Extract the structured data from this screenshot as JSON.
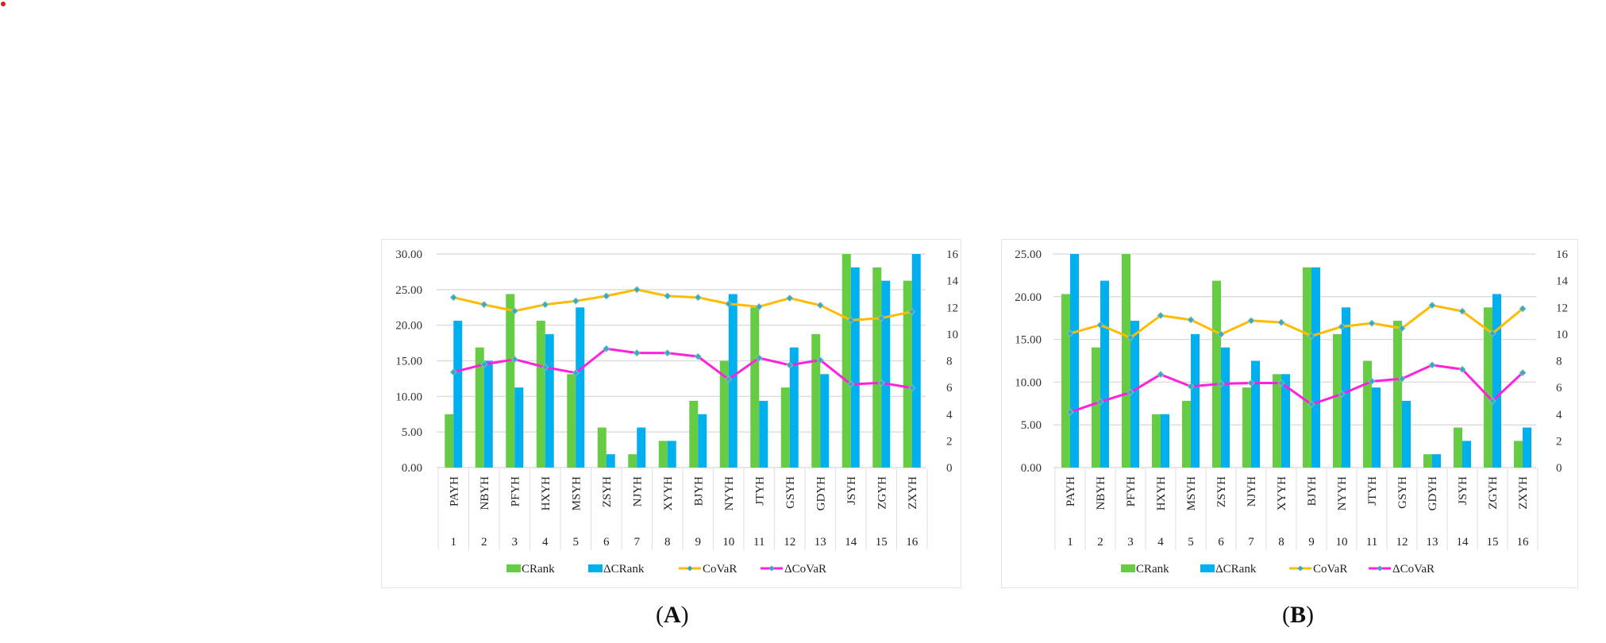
{
  "colors": {
    "crank": "#66cc44",
    "dcrank": "#00b0ee",
    "covar": "#ffbb00",
    "dcovar": "#ff22dd",
    "marker": "#3fa8b8",
    "grid": "#dddddd",
    "frame": "#e4e4e4",
    "indicator": "#e02020"
  },
  "captions": [
    {
      "open": "(",
      "letter": "A",
      "close": ")"
    },
    {
      "open": "(",
      "letter": "B",
      "close": ")"
    }
  ],
  "chart_data": [
    {
      "type": "bar+line",
      "id": "A",
      "categories": [
        "PAYH",
        "NBYH",
        "PFYH",
        "HXYH",
        "MSYH",
        "ZSYH",
        "NJYH",
        "XYYH",
        "BJYH",
        "NYYH",
        "JTYH",
        "GSYH",
        "GDYH",
        "JSYH",
        "ZGYH",
        "ZXYH"
      ],
      "category_numbers": [
        "1",
        "2",
        "3",
        "4",
        "5",
        "6",
        "7",
        "8",
        "9",
        "10",
        "11",
        "12",
        "13",
        "14",
        "15",
        "16"
      ],
      "left_axis": {
        "ylim": [
          0,
          30
        ],
        "ticks": [
          "0.00",
          "5.00",
          "10.00",
          "15.00",
          "20.00",
          "25.00",
          "30.00"
        ],
        "tick_values": [
          0,
          5,
          10,
          15,
          20,
          25,
          30
        ]
      },
      "right_axis": {
        "ylim": [
          0,
          16
        ],
        "ticks": [
          "0",
          "2",
          "4",
          "6",
          "8",
          "10",
          "12",
          "14",
          "16"
        ],
        "tick_values": [
          0,
          2,
          4,
          6,
          8,
          10,
          12,
          14,
          16
        ]
      },
      "grid": true,
      "legend_position": "bottom",
      "series": [
        {
          "name": "CRank",
          "kind": "bar",
          "axis": "right",
          "values": [
            4,
            9,
            13,
            11,
            7,
            3,
            1,
            2,
            5,
            8,
            12,
            6,
            10,
            16,
            15,
            14
          ]
        },
        {
          "name": "ΔCRank",
          "kind": "bar",
          "axis": "right",
          "values": [
            11,
            8,
            6,
            10,
            12,
            1,
            3,
            2,
            4,
            13,
            5,
            9,
            7,
            15,
            14,
            16
          ]
        },
        {
          "name": "CoVaR",
          "kind": "line",
          "axis": "left",
          "values": [
            23.9,
            22.9,
            22.0,
            22.9,
            23.4,
            24.1,
            25.0,
            24.1,
            23.9,
            23.0,
            22.6,
            23.8,
            22.8,
            20.7,
            21.0,
            21.9
          ]
        },
        {
          "name": "ΔCoVaR",
          "kind": "line",
          "axis": "left",
          "values": [
            13.4,
            14.5,
            15.2,
            14.1,
            13.3,
            16.7,
            16.1,
            16.1,
            15.6,
            12.4,
            15.4,
            14.4,
            15.1,
            11.7,
            11.9,
            11.2
          ]
        }
      ]
    },
    {
      "type": "bar+line",
      "id": "B",
      "categories": [
        "PAYH",
        "NBYH",
        "PFYH",
        "HXYH",
        "MSYH",
        "ZSYH",
        "NJYH",
        "XYYH",
        "BJYH",
        "NYYH",
        "JTYH",
        "GSYH",
        "GDYH",
        "JSYH",
        "ZGYH",
        "ZXYH"
      ],
      "category_numbers": [
        "1",
        "2",
        "3",
        "4",
        "5",
        "6",
        "7",
        "8",
        "9",
        "10",
        "11",
        "12",
        "13",
        "14",
        "15",
        "16"
      ],
      "left_axis": {
        "ylim": [
          0,
          25
        ],
        "ticks": [
          "0.00",
          "5.00",
          "10.00",
          "15.00",
          "20.00",
          "25.00"
        ],
        "tick_values": [
          0,
          5,
          10,
          15,
          20,
          25
        ]
      },
      "right_axis": {
        "ylim": [
          0,
          16
        ],
        "ticks": [
          "0",
          "2",
          "4",
          "6",
          "8",
          "10",
          "12",
          "14",
          "16"
        ],
        "tick_values": [
          0,
          2,
          4,
          6,
          8,
          10,
          12,
          14,
          16
        ]
      },
      "grid": true,
      "legend_position": "bottom",
      "series": [
        {
          "name": "CRank",
          "kind": "bar",
          "axis": "right",
          "values": [
            13,
            9,
            16,
            4,
            5,
            14,
            6,
            7,
            15,
            10,
            8,
            11,
            1,
            3,
            12,
            2
          ]
        },
        {
          "name": "ΔCRank",
          "kind": "bar",
          "axis": "right",
          "values": [
            16,
            14,
            11,
            4,
            10,
            9,
            8,
            7,
            15,
            12,
            6,
            5,
            1,
            2,
            13,
            3
          ]
        },
        {
          "name": "CoVaR",
          "kind": "line",
          "axis": "left",
          "values": [
            15.7,
            16.7,
            15.2,
            17.8,
            17.3,
            15.6,
            17.2,
            17.0,
            15.4,
            16.5,
            16.9,
            16.3,
            19.0,
            18.3,
            15.7,
            18.6
          ]
        },
        {
          "name": "ΔCoVaR",
          "kind": "line",
          "axis": "left",
          "values": [
            6.5,
            7.7,
            8.8,
            10.9,
            9.5,
            9.8,
            9.9,
            9.9,
            7.4,
            8.6,
            10.1,
            10.4,
            12.0,
            11.5,
            7.8,
            11.1
          ]
        }
      ]
    }
  ]
}
